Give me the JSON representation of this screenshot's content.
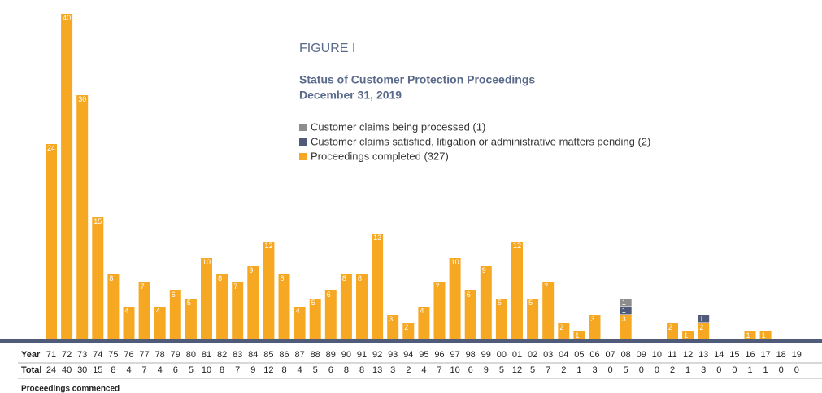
{
  "chart_data": {
    "type": "stacked-bar",
    "title": "FIGURE I",
    "subtitle": [
      "Status of Customer Protection Proceedings",
      "December 31, 2019"
    ],
    "categories": [
      "71",
      "72",
      "73",
      "74",
      "75",
      "76",
      "77",
      "78",
      "79",
      "80",
      "81",
      "82",
      "83",
      "84",
      "85",
      "86",
      "87",
      "88",
      "89",
      "90",
      "91",
      "92",
      "93",
      "94",
      "95",
      "96",
      "97",
      "98",
      "99",
      "00",
      "01",
      "02",
      "03",
      "04",
      "05",
      "06",
      "07",
      "08",
      "09",
      "10",
      "11",
      "12",
      "13",
      "14",
      "15",
      "16",
      "17",
      "18",
      "19"
    ],
    "series": [
      {
        "name": "Customer claims being processed (1)",
        "color": "#8d8d8d",
        "values": [
          0,
          0,
          0,
          0,
          0,
          0,
          0,
          0,
          0,
          0,
          0,
          0,
          0,
          0,
          0,
          0,
          0,
          0,
          0,
          0,
          0,
          0,
          0,
          0,
          0,
          0,
          0,
          0,
          0,
          0,
          0,
          0,
          0,
          0,
          0,
          0,
          0,
          1,
          0,
          0,
          0,
          0,
          0,
          0,
          0,
          0,
          0,
          0,
          0
        ]
      },
      {
        "name": "Customer claims satisfied, litigation or administrative matters pending (2)",
        "color": "#4f5b78",
        "values": [
          0,
          0,
          0,
          0,
          0,
          0,
          0,
          0,
          0,
          0,
          0,
          0,
          0,
          0,
          0,
          0,
          0,
          0,
          0,
          0,
          0,
          0,
          0,
          0,
          0,
          0,
          0,
          0,
          0,
          0,
          0,
          0,
          0,
          0,
          0,
          0,
          0,
          1,
          0,
          0,
          0,
          0,
          1,
          0,
          0,
          0,
          0,
          0,
          0
        ]
      },
      {
        "name": "Proceedings completed (327)",
        "color": "#f7a823",
        "values": [
          24,
          40,
          30,
          15,
          8,
          4,
          7,
          4,
          6,
          5,
          10,
          8,
          7,
          9,
          12,
          8,
          4,
          5,
          6,
          8,
          8,
          13,
          3,
          2,
          4,
          7,
          10,
          6,
          9,
          5,
          12,
          5,
          7,
          2,
          1,
          3,
          0,
          3,
          0,
          0,
          2,
          1,
          2,
          0,
          0,
          1,
          1,
          0,
          0
        ]
      }
    ],
    "year_label": "Year",
    "total_label": "Total",
    "totals": [
      24,
      40,
      30,
      15,
      8,
      4,
      7,
      4,
      6,
      5,
      10,
      8,
      7,
      9,
      12,
      8,
      4,
      5,
      6,
      8,
      8,
      13,
      3,
      2,
      4,
      7,
      10,
      6,
      9,
      5,
      12,
      5,
      7,
      2,
      1,
      3,
      0,
      5,
      0,
      0,
      2,
      1,
      3,
      0,
      0,
      1,
      1,
      0,
      0
    ],
    "footnote": "Proceedings commenced"
  }
}
